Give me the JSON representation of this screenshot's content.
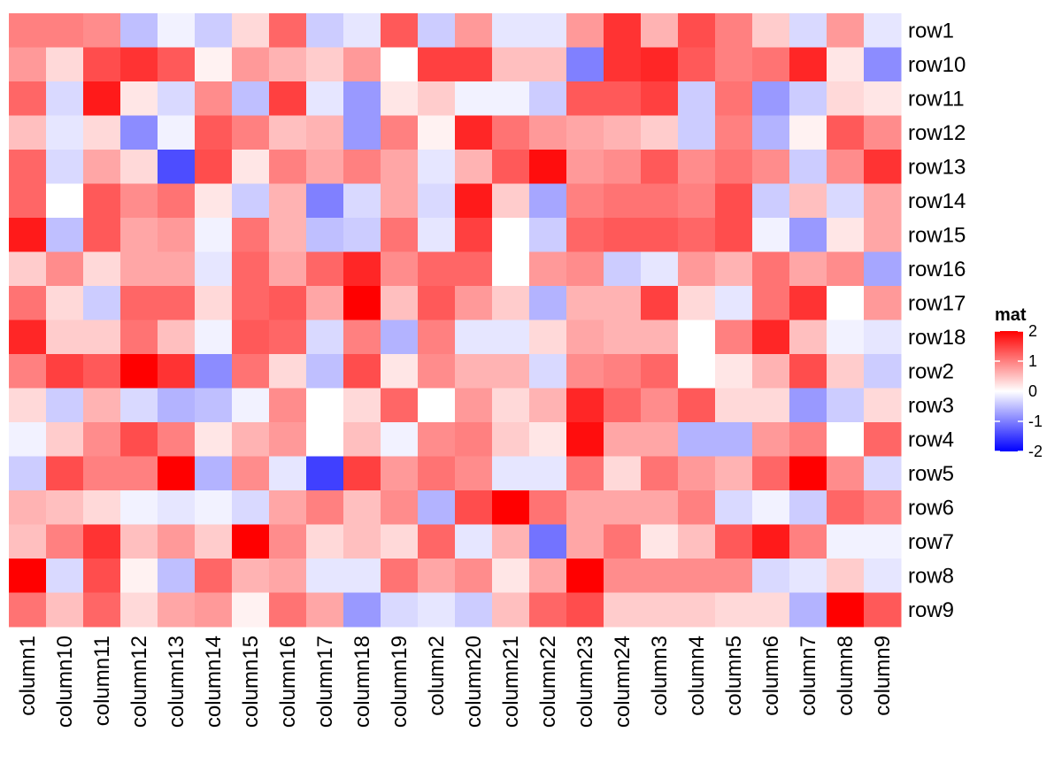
{
  "chart_data": {
    "type": "heatmap",
    "rows": [
      "row1",
      "row10",
      "row11",
      "row12",
      "row13",
      "row14",
      "row15",
      "row16",
      "row17",
      "row18",
      "row2",
      "row3",
      "row4",
      "row5",
      "row6",
      "row7",
      "row8",
      "row9"
    ],
    "columns": [
      "column1",
      "column10",
      "column11",
      "column12",
      "column13",
      "column14",
      "column15",
      "column16",
      "column17",
      "column18",
      "column19",
      "column2",
      "column20",
      "column21",
      "column22",
      "column23",
      "column24",
      "column3",
      "column4",
      "column5",
      "column6",
      "column7",
      "column8",
      "column9"
    ],
    "values": [
      [
        1.0,
        1.0,
        0.9,
        -0.5,
        -0.1,
        -0.4,
        0.3,
        1.2,
        -0.4,
        -0.2,
        1.3,
        -0.4,
        0.8,
        -0.2,
        -0.2,
        0.8,
        1.6,
        0.6,
        1.4,
        1.0,
        0.4,
        -0.3,
        0.8,
        -0.2
      ],
      [
        0.8,
        0.3,
        1.4,
        1.6,
        1.3,
        0.1,
        0.8,
        0.6,
        0.4,
        0.8,
        0.0,
        1.5,
        1.5,
        0.5,
        0.5,
        -1.0,
        1.6,
        1.7,
        1.3,
        1.0,
        1.1,
        1.7,
        0.2,
        -0.9
      ],
      [
        1.2,
        -0.3,
        1.8,
        0.2,
        -0.3,
        0.9,
        -0.5,
        1.5,
        -0.2,
        -0.8,
        0.2,
        0.4,
        -0.1,
        -0.1,
        -0.4,
        1.3,
        1.3,
        1.5,
        -0.4,
        1.1,
        -0.8,
        -0.4,
        0.3,
        0.2
      ],
      [
        0.5,
        -0.2,
        0.3,
        -0.9,
        -0.1,
        1.3,
        1.0,
        0.5,
        0.6,
        -0.8,
        1.0,
        0.1,
        1.7,
        1.1,
        0.8,
        0.7,
        0.6,
        0.4,
        -0.4,
        1.0,
        -0.6,
        0.1,
        1.3,
        0.9
      ],
      [
        1.2,
        -0.3,
        0.7,
        0.3,
        -1.4,
        1.4,
        0.2,
        1.0,
        0.7,
        1.0,
        0.7,
        -0.2,
        0.6,
        1.3,
        1.9,
        0.8,
        0.9,
        1.3,
        0.9,
        1.1,
        0.9,
        -0.4,
        0.9,
        1.6
      ],
      [
        1.2,
        0.0,
        1.3,
        0.9,
        1.1,
        0.2,
        -0.4,
        0.6,
        -1.0,
        -0.3,
        0.7,
        -0.3,
        1.8,
        0.4,
        -0.7,
        1.0,
        1.1,
        1.1,
        1.0,
        1.4,
        -0.4,
        0.5,
        -0.3,
        0.7
      ],
      [
        1.8,
        -0.5,
        1.3,
        0.7,
        0.8,
        -0.1,
        1.1,
        0.6,
        -0.5,
        -0.4,
        1.1,
        -0.2,
        1.5,
        0.0,
        -0.4,
        1.2,
        1.3,
        1.3,
        1.2,
        1.4,
        -0.1,
        -0.8,
        0.2,
        0.7
      ],
      [
        0.4,
        0.9,
        0.3,
        0.7,
        0.7,
        -0.2,
        1.2,
        0.7,
        1.2,
        1.7,
        0.9,
        1.2,
        1.2,
        0.0,
        0.8,
        0.9,
        -0.4,
        -0.2,
        0.8,
        0.6,
        1.1,
        0.7,
        0.9,
        -0.7
      ],
      [
        1.1,
        0.3,
        -0.4,
        1.2,
        1.2,
        0.3,
        1.2,
        1.3,
        0.7,
        2.1,
        0.5,
        1.3,
        0.8,
        0.4,
        -0.6,
        0.6,
        0.6,
        1.5,
        0.3,
        -0.2,
        1.1,
        1.6,
        0.0,
        0.8
      ],
      [
        1.7,
        0.4,
        0.4,
        1.1,
        0.5,
        -0.1,
        1.3,
        1.2,
        -0.3,
        1.0,
        -0.6,
        1.0,
        -0.2,
        -0.2,
        0.3,
        0.7,
        0.6,
        0.6,
        0.0,
        1.0,
        1.7,
        0.5,
        -0.1,
        -0.2
      ],
      [
        1.0,
        1.5,
        1.3,
        2.1,
        1.6,
        -0.9,
        1.1,
        0.3,
        -0.5,
        1.4,
        0.2,
        0.9,
        0.6,
        0.6,
        -0.3,
        0.9,
        1.0,
        1.2,
        0.0,
        0.2,
        0.6,
        1.4,
        0.4,
        -0.4
      ],
      [
        0.3,
        -0.4,
        0.6,
        -0.3,
        -0.6,
        -0.5,
        -0.1,
        0.9,
        0.0,
        0.3,
        1.2,
        0.0,
        0.8,
        0.3,
        0.6,
        1.7,
        1.2,
        0.9,
        1.3,
        0.3,
        0.3,
        -0.8,
        -0.4,
        0.3
      ],
      [
        -0.1,
        0.4,
        0.9,
        1.4,
        1.0,
        0.2,
        0.6,
        0.8,
        0.0,
        0.5,
        -0.1,
        0.9,
        1.0,
        0.4,
        0.2,
        1.9,
        0.7,
        0.7,
        -0.6,
        -0.6,
        0.8,
        1.0,
        0.0,
        1.2
      ],
      [
        -0.4,
        1.4,
        1.0,
        1.0,
        2.2,
        -0.6,
        0.9,
        -0.2,
        -1.5,
        1.5,
        0.8,
        1.1,
        0.9,
        -0.2,
        -0.2,
        1.1,
        0.3,
        1.1,
        0.8,
        0.6,
        1.2,
        2.2,
        0.9,
        -0.3
      ],
      [
        0.6,
        0.5,
        0.3,
        -0.1,
        -0.2,
        -0.1,
        -0.3,
        0.7,
        1.0,
        0.5,
        0.9,
        -0.6,
        1.4,
        2.0,
        1.1,
        0.7,
        0.7,
        0.7,
        1.0,
        -0.3,
        -0.1,
        -0.4,
        1.2,
        1.0
      ],
      [
        0.5,
        1.0,
        1.6,
        0.5,
        0.8,
        0.4,
        2.2,
        0.9,
        0.3,
        0.5,
        0.3,
        1.2,
        -0.2,
        0.6,
        -1.1,
        0.7,
        1.1,
        0.2,
        0.5,
        1.3,
        1.8,
        1.0,
        -0.1,
        -0.1
      ],
      [
        2.2,
        -0.3,
        1.4,
        0.1,
        -0.5,
        1.2,
        0.6,
        0.7,
        -0.2,
        -0.2,
        1.1,
        0.7,
        0.9,
        0.2,
        0.7,
        2.1,
        0.9,
        0.9,
        0.9,
        0.9,
        -0.3,
        -0.2,
        0.4,
        -0.2
      ],
      [
        1.1,
        0.5,
        1.2,
        0.3,
        0.7,
        0.8,
        0.1,
        1.1,
        0.7,
        -0.8,
        -0.3,
        -0.2,
        -0.4,
        0.5,
        1.2,
        1.4,
        0.4,
        0.4,
        0.4,
        0.3,
        0.3,
        -0.6,
        2.1,
        1.3
      ]
    ],
    "legend": {
      "title": "mat",
      "ticks": [
        2,
        1,
        0,
        -1,
        -2
      ],
      "tick_labels": [
        "2",
        "1",
        "0",
        "-1",
        "-2"
      ],
      "range": [
        -2,
        2
      ],
      "placement": "right"
    },
    "colors": {
      "low": "#0000ff",
      "mid": "#ffffff",
      "high": "#ff0000"
    }
  }
}
